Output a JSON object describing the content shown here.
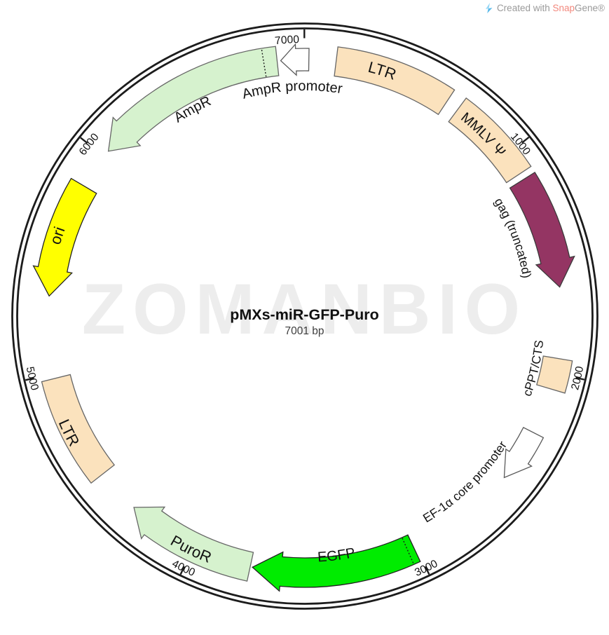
{
  "credit": {
    "logo_icon": "snapgene-bolt-icon",
    "prefix": "Created with ",
    "brand_snap": "Snap",
    "brand_gene": "Gene",
    "registered_mark": "®"
  },
  "watermark_text": "ZOMANBIO",
  "title": {
    "name": "pMXs-miR-GFP-Puro",
    "size_label": "7001 bp"
  },
  "map": {
    "ring_color": "#1c1c1c",
    "label_color": "#121212",
    "ticks": [
      {
        "label": "1000",
        "angle": 51.4
      },
      {
        "label": "2000",
        "angle": 102.8
      },
      {
        "label": "3000",
        "angle": 154.3
      },
      {
        "label": "4000",
        "angle": 205.7
      },
      {
        "label": "5000",
        "angle": 257.1
      },
      {
        "label": "6000",
        "angle": 308.5
      },
      {
        "label": "7000",
        "angle": 359.9,
        "label_angle": 356.3
      }
    ],
    "features": [
      {
        "label": "LTR",
        "shape": "block",
        "a0": 7,
        "a1": 33.5,
        "fill": "#FBE2BD",
        "stroke": "#666666",
        "label_angle": 17.5,
        "label_r": 360,
        "font": 22
      },
      {
        "label": "MMLV Ψ",
        "shape": "block",
        "a0": 36.5,
        "a1": 56.5,
        "fill": "#FBE2BD",
        "stroke": "#666666",
        "label_angle": 44.5,
        "label_r": 358,
        "font": 20
      },
      {
        "label": "gag (truncated)",
        "shape": "arrow",
        "dir": "cw",
        "a0": 58,
        "a1": 83.5,
        "head": 6,
        "fill": "#943563",
        "stroke": "#3a3a3a",
        "label_angle": 69.5,
        "label_r": 316,
        "font": 17.5
      },
      {
        "label": "cPPT/CTS",
        "shape": "block",
        "a0": 99.5,
        "a1": 106.5,
        "fill": "#FBE2BD",
        "stroke": "#666666",
        "label_angle": 102.8,
        "label_r": 342,
        "font": 17.5
      },
      {
        "label": "EF-1α core promoter",
        "shape": "arrow",
        "dir": "cw",
        "a0": 117,
        "a1": 129,
        "head": 5.5,
        "fill": "#FFFFFF",
        "stroke": "#5a5a5a",
        "half": 16,
        "over": 6,
        "label_angle": 136,
        "label_r": 342,
        "font": 17.5
      },
      {
        "label": "EGFP",
        "shape": "arrow",
        "dir": "cw",
        "a0": 154.8,
        "a1": 191.8,
        "head": 6.5,
        "fill": "#00EC00",
        "stroke": "#222222",
        "label_angle": 172.5,
        "label_r": 351,
        "font": 20,
        "divider": 156.3
      },
      {
        "label": "PuroR",
        "shape": "arrow",
        "dir": "cw",
        "a0": 192.3,
        "a1": 221.8,
        "head": 5.5,
        "fill": "#D6F2CE",
        "stroke": "#666666",
        "label_angle": 206,
        "label_r": 378,
        "font": 22
      },
      {
        "label": "LTR",
        "shape": "block",
        "a0": 232,
        "a1": 256,
        "fill": "#FBE2BD",
        "stroke": "#666666",
        "label_angle": 243.7,
        "label_r": 383,
        "font": 22
      },
      {
        "label": "ori",
        "shape": "arrow",
        "dir": "ccw",
        "a0": 274.5,
        "a1": 300.5,
        "head": 6,
        "fill": "#FFFF00",
        "stroke": "#222222",
        "label_angle": 288,
        "label_r": 364,
        "font": 22
      },
      {
        "label": "AmpR",
        "shape": "arrow",
        "dir": "ccw",
        "a0": 310,
        "a1": 353.8,
        "head": 6,
        "fill": "#D6F2CE",
        "stroke": "#666666",
        "label_angle": 331.5,
        "label_r": 330,
        "font": 20,
        "divider": 350.8
      },
      {
        "label": "AmpR promoter",
        "shape": "arrow",
        "dir": "ccw",
        "a0": 354.6,
        "a1": 360.9,
        "head": 3.4,
        "fill": "#FFFFFF",
        "stroke": "#5a5a5a",
        "half": 16,
        "over": 6,
        "label_angle": 356.8,
        "label_r": 322,
        "font": 20
      }
    ]
  }
}
